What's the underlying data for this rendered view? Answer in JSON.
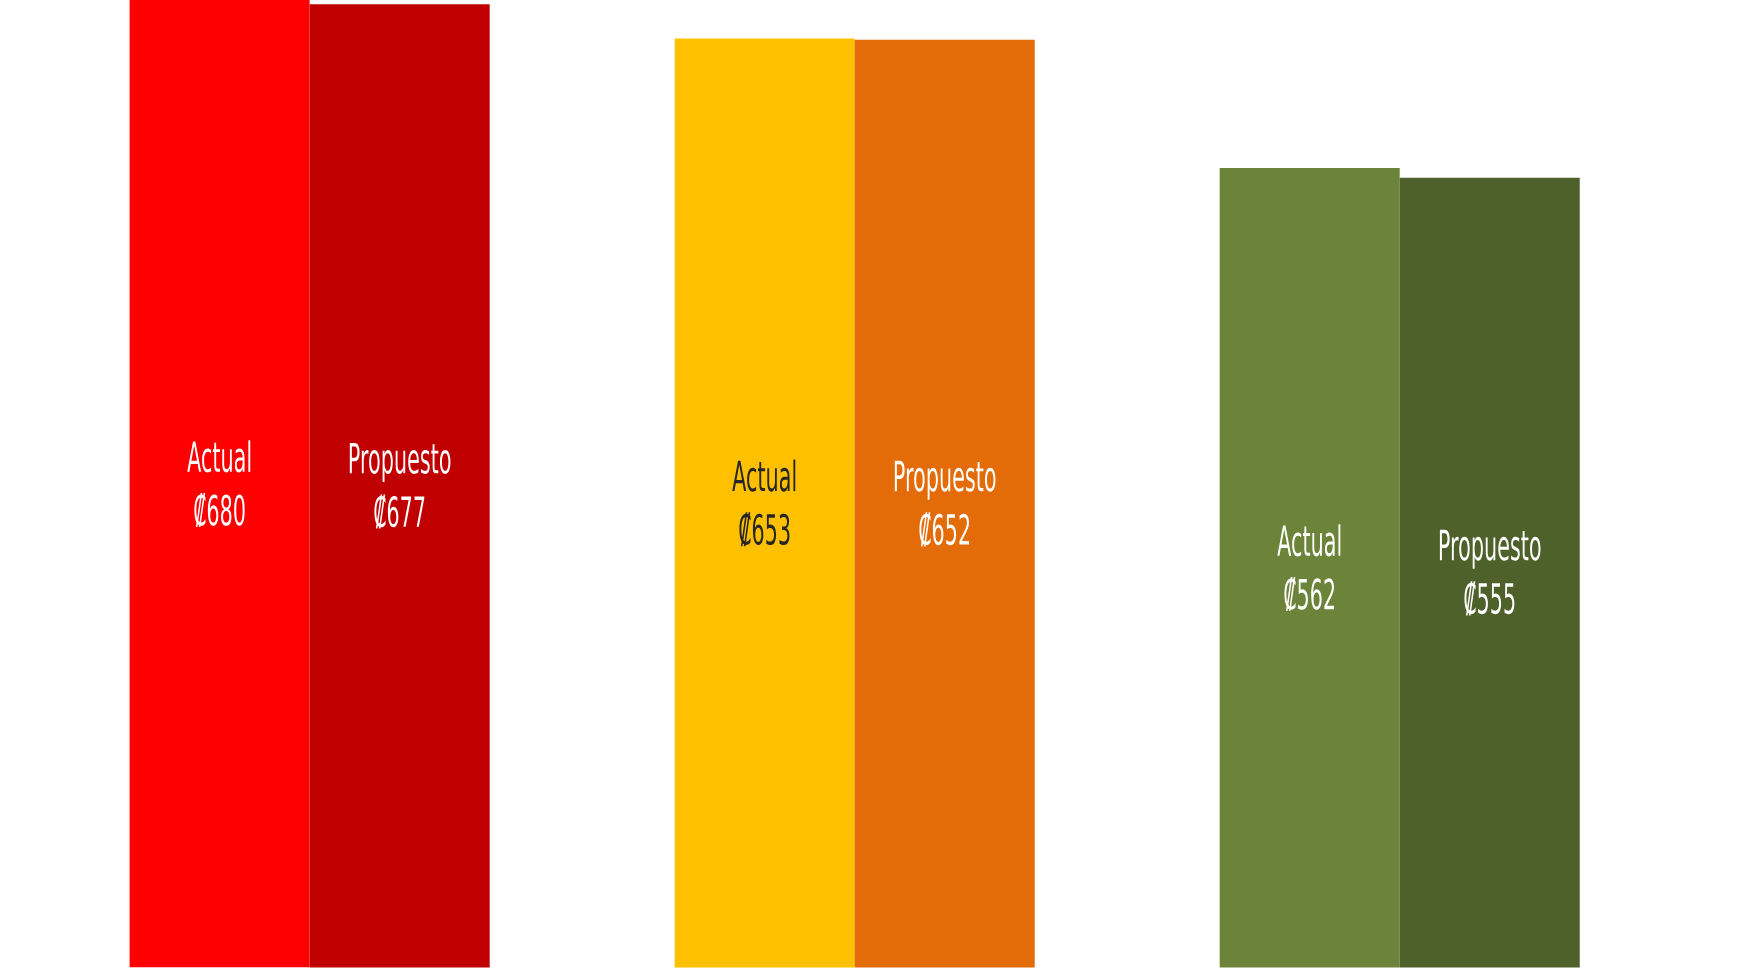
{
  "chart_data": {
    "type": "bar",
    "categories": [
      null,
      null,
      null
    ],
    "series": [
      {
        "name": "Actual",
        "colors": [
          "#ff0000",
          "#ffc000",
          "#6b843a"
        ],
        "values": [
          680,
          653,
          562
        ],
        "value_labels": [
          "₡680",
          "₡653",
          "₡562"
        ]
      },
      {
        "name": "Propuesto",
        "colors": [
          "#c00000",
          "#e36c09",
          "#4e612a"
        ],
        "values": [
          677,
          652,
          555
        ],
        "value_labels": [
          "₡677",
          "₡652",
          "₡555"
        ]
      }
    ],
    "tick_labels": false
  }
}
